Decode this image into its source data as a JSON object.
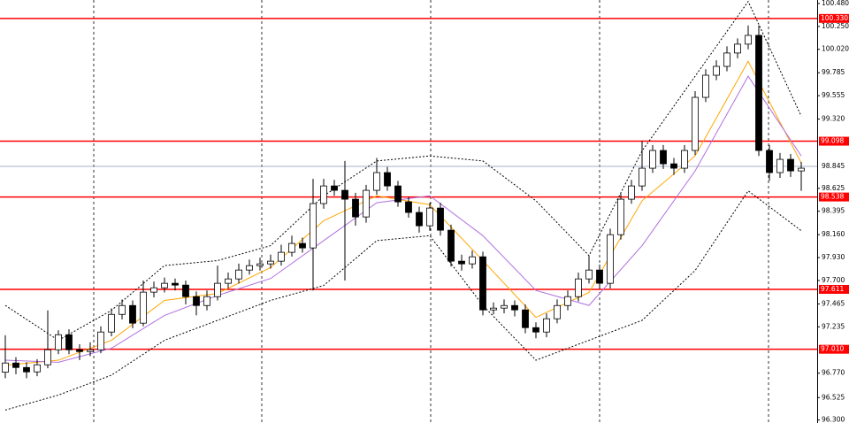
{
  "chart_data": {
    "type": "candlestick",
    "ylim": [
      96.27,
      100.515
    ],
    "yticks": [
      {
        "value": 100.48,
        "label": "100.480"
      },
      {
        "value": 100.25,
        "label": "100.250"
      },
      {
        "value": 100.02,
        "label": "100.020"
      },
      99.785,
      99.555,
      {
        "value": 99.32,
        "label": "99.320"
      },
      98.625,
      98.395,
      {
        "value": 98.16,
        "label": "98.160"
      },
      {
        "value": 97.93,
        "label": "97.930"
      },
      {
        "value": 97.7,
        "label": "97.700"
      },
      97.465,
      97.235,
      {
        "value": 96.77,
        "label": "96.770"
      },
      96.525,
      {
        "value": 96.3,
        "label": "96.300"
      }
    ],
    "up_color": "#ffffff",
    "down_color": "#000000",
    "open": [
      96.78,
      96.872,
      96.827,
      96.783,
      96.854,
      97.005,
      97.156,
      97.005,
      96.987,
      97.005,
      97.183,
      97.36,
      97.449,
      97.272,
      97.583,
      97.627,
      97.672,
      97.654,
      97.538,
      97.449,
      97.538,
      97.672,
      97.716,
      97.805,
      97.849,
      97.867,
      97.894,
      97.983,
      98.072,
      98.027,
      98.472,
      98.649,
      98.605,
      98.516,
      98.338,
      98.605,
      98.783,
      98.649,
      98.489,
      98.383,
      98.249,
      98.427,
      98.205,
      97.894,
      97.867,
      97.938,
      97.405,
      97.423,
      97.449,
      97.405,
      97.227,
      97.183,
      97.316,
      97.449,
      97.538,
      97.716,
      97.805,
      97.672,
      98.16,
      98.516,
      98.649,
      98.827,
      99.005,
      98.871,
      98.827,
      99.005,
      99.538,
      99.76,
      99.849,
      99.983,
      100.072,
      100.16,
      99.005,
      98.783,
      98.916,
      98.8
    ],
    "high": [
      97.15,
      96.93,
      96.88,
      96.91,
      97.4,
      97.2,
      97.21,
      97.06,
      97.08,
      97.24,
      97.42,
      97.51,
      97.5,
      97.7,
      97.69,
      97.73,
      97.72,
      97.7,
      97.59,
      97.6,
      97.85,
      97.78,
      97.87,
      97.91,
      97.93,
      97.96,
      98.06,
      98.15,
      98.13,
      98.72,
      98.72,
      98.71,
      98.9,
      98.58,
      98.66,
      98.93,
      98.84,
      98.7,
      98.54,
      98.44,
      98.48,
      98.48,
      98.26,
      97.96,
      98.0,
      97.99,
      97.48,
      97.51,
      97.5,
      97.46,
      97.28,
      97.37,
      97.51,
      97.6,
      97.78,
      97.95,
      97.86,
      98.22,
      98.57,
      98.71,
      99.1,
      99.06,
      99.06,
      98.93,
      99.06,
      99.6,
      99.82,
      99.91,
      100.05,
      100.13,
      100.26,
      100.26,
      99.06,
      98.98,
      98.97,
      98.89
    ],
    "low": [
      96.72,
      96.76,
      96.72,
      96.74,
      96.82,
      96.96,
      96.96,
      96.9,
      96.94,
      96.97,
      97.14,
      97.31,
      97.22,
      97.24,
      97.53,
      97.58,
      97.6,
      97.46,
      97.35,
      97.4,
      97.5,
      97.62,
      97.67,
      97.76,
      97.8,
      97.82,
      97.85,
      97.94,
      97.98,
      97.6,
      98.42,
      98.55,
      97.7,
      98.25,
      98.28,
      98.56,
      98.6,
      98.44,
      98.33,
      98.18,
      98.2,
      98.15,
      97.84,
      97.8,
      97.82,
      97.35,
      97.36,
      97.37,
      97.34,
      97.17,
      97.12,
      97.13,
      97.27,
      97.4,
      97.49,
      97.67,
      97.62,
      97.62,
      98.11,
      98.47,
      98.6,
      98.78,
      98.82,
      98.76,
      98.78,
      98.96,
      99.49,
      99.71,
      99.8,
      99.93,
      100.02,
      98.95,
      98.7,
      98.73,
      98.74,
      98.6
    ],
    "close": [
      96.872,
      96.827,
      96.783,
      96.854,
      97.005,
      97.156,
      97.005,
      96.987,
      97.005,
      97.183,
      97.36,
      97.449,
      97.272,
      97.583,
      97.627,
      97.672,
      97.654,
      97.538,
      97.449,
      97.538,
      97.672,
      97.716,
      97.805,
      97.849,
      97.867,
      97.894,
      97.983,
      98.072,
      98.027,
      98.472,
      98.649,
      98.605,
      98.516,
      98.338,
      98.605,
      98.783,
      98.649,
      98.489,
      98.383,
      98.249,
      98.427,
      98.205,
      97.894,
      97.867,
      97.938,
      97.405,
      97.423,
      97.449,
      97.405,
      97.227,
      97.183,
      97.316,
      97.449,
      97.538,
      97.716,
      97.805,
      97.672,
      98.16,
      98.516,
      98.649,
      98.827,
      99.005,
      98.871,
      98.827,
      99.005,
      99.538,
      99.76,
      99.849,
      99.983,
      100.072,
      100.16,
      99.005,
      98.783,
      98.916,
      98.8,
      98.827
    ],
    "overlays": [
      {
        "color": "#ffa500",
        "dashed": false,
        "x": [
          0,
          5,
          10,
          15,
          20,
          25,
          30,
          35,
          40,
          45,
          50,
          55,
          60,
          65,
          70,
          75
        ],
        "values": [
          96.85,
          96.9,
          97.1,
          97.5,
          97.57,
          97.83,
          98.3,
          98.55,
          98.46,
          97.9,
          97.33,
          97.58,
          98.5,
          98.95,
          99.9,
          98.88
        ]
      },
      {
        "color": "#b070e0",
        "dashed": false,
        "x": [
          0,
          5,
          10,
          15,
          20,
          25,
          30,
          35,
          40,
          45,
          50,
          55,
          60,
          65,
          70,
          75
        ],
        "values": [
          96.9,
          96.88,
          97.02,
          97.35,
          97.55,
          97.72,
          98.1,
          98.48,
          98.55,
          98.15,
          97.6,
          97.45,
          98.05,
          98.8,
          99.75,
          98.95
        ]
      },
      {
        "color": "#000000",
        "dashed": true,
        "x": [
          0,
          5,
          10,
          15,
          20,
          25,
          30,
          35,
          40,
          45,
          50,
          55,
          60,
          65,
          70,
          75
        ],
        "values": [
          97.45,
          97.1,
          97.4,
          97.85,
          97.9,
          98.05,
          98.55,
          98.9,
          98.95,
          98.9,
          98.5,
          97.95,
          99.0,
          99.75,
          100.5,
          99.35
        ]
      },
      {
        "color": "#000000",
        "dashed": true,
        "x": [
          0,
          5,
          10,
          15,
          20,
          25,
          30,
          35,
          40,
          45,
          50,
          55,
          60,
          65,
          70,
          75
        ],
        "values": [
          96.4,
          96.55,
          96.75,
          97.1,
          97.3,
          97.5,
          97.65,
          98.1,
          98.15,
          97.45,
          96.9,
          97.1,
          97.3,
          97.8,
          98.6,
          98.2
        ]
      }
    ],
    "levels": [
      {
        "value": 100.33,
        "label": "100.330"
      },
      99.098,
      98.538,
      97.611,
      {
        "value": 97.01,
        "label": "97.010"
      }
    ],
    "level_color": "#ff0000",
    "current_price": 98.845,
    "current_color": "#a8b0c8"
  }
}
